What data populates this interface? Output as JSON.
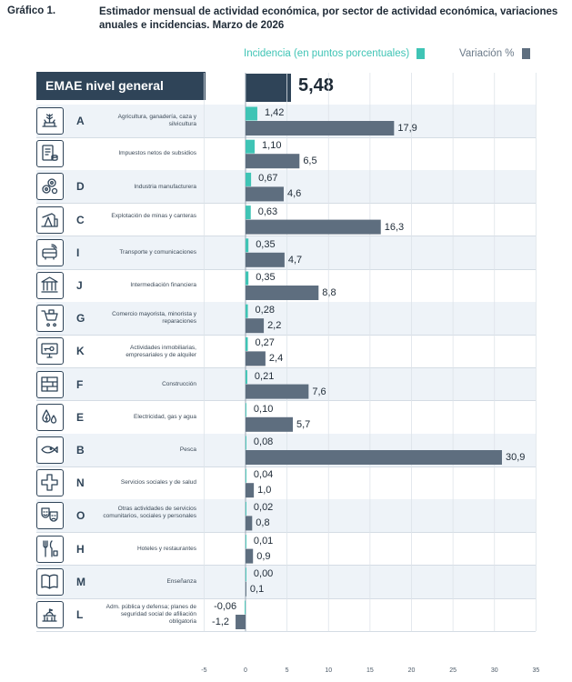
{
  "header": {
    "label": "Gráfico 1.",
    "title": "Estimador mensual de actividad económica, por sector de actividad económica, variaciones anuales e incidencias. Marzo de 2026"
  },
  "chart_data": {
    "type": "bar",
    "orientation": "horizontal",
    "legend": {
      "incidence": "Incidencia (en puntos porcentuales)",
      "variation": "Variación %",
      "position": "top-right"
    },
    "general": {
      "label": "EMAE nivel general",
      "value": 5.48,
      "display": "5,48"
    },
    "xlim": [
      -5,
      35
    ],
    "ticks": [
      -5,
      0,
      5,
      10,
      15,
      20,
      25,
      30,
      35
    ],
    "colors": {
      "incidence": "#3fc4b5",
      "variation": "#5e6e7f",
      "general": "#2f4458"
    },
    "rows": [
      {
        "letter": "A",
        "icon": "agriculture-icon",
        "label": "Agricultura, ganadería, caza y silvicultura",
        "incidence": 1.42,
        "inc_text": "1,42",
        "variation": 17.9,
        "var_text": "17,9"
      },
      {
        "letter": "",
        "icon": "taxes-icon",
        "label": "Impuestos netos de subsidios",
        "incidence": 1.1,
        "inc_text": "1,10",
        "variation": 6.5,
        "var_text": "6,5"
      },
      {
        "letter": "D",
        "icon": "gears-icon",
        "label": "Industria manufacturera",
        "incidence": 0.67,
        "inc_text": "0,67",
        "variation": 4.6,
        "var_text": "4,6"
      },
      {
        "letter": "C",
        "icon": "oil-pump-icon",
        "label": "Explotación de minas y canteras",
        "incidence": 0.63,
        "inc_text": "0,63",
        "variation": 16.3,
        "var_text": "16,3"
      },
      {
        "letter": "I",
        "icon": "transport-icon",
        "label": "Transporte y comunicaciones",
        "incidence": 0.35,
        "inc_text": "0,35",
        "variation": 4.7,
        "var_text": "4,7"
      },
      {
        "letter": "J",
        "icon": "bank-icon",
        "label": "Intermediación financiera",
        "incidence": 0.35,
        "inc_text": "0,35",
        "variation": 8.8,
        "var_text": "8,8"
      },
      {
        "letter": "G",
        "icon": "cart-icon",
        "label": "Comercio mayorista, minorista y reparaciones",
        "incidence": 0.28,
        "inc_text": "0,28",
        "variation": 2.2,
        "var_text": "2,2"
      },
      {
        "letter": "K",
        "icon": "monitor-key-icon",
        "label": "Actividades inmobiliarias, empresariales y de alquiler",
        "incidence": 0.27,
        "inc_text": "0,27",
        "variation": 2.4,
        "var_text": "2,4"
      },
      {
        "letter": "F",
        "icon": "bricks-icon",
        "label": "Construcción",
        "incidence": 0.21,
        "inc_text": "0,21",
        "variation": 7.6,
        "var_text": "7,6"
      },
      {
        "letter": "E",
        "icon": "energy-drops-icon",
        "label": "Electricidad, gas y agua",
        "incidence": 0.1,
        "inc_text": "0,10",
        "variation": 5.7,
        "var_text": "5,7"
      },
      {
        "letter": "B",
        "icon": "fish-icon",
        "label": "Pesca",
        "incidence": 0.08,
        "inc_text": "0,08",
        "variation": 30.9,
        "var_text": "30,9"
      },
      {
        "letter": "N",
        "icon": "health-cross-icon",
        "label": "Servicios sociales y de salud",
        "incidence": 0.04,
        "inc_text": "0,04",
        "variation": 1.0,
        "var_text": "1,0"
      },
      {
        "letter": "O",
        "icon": "masks-icon",
        "label": "Otras actividades de servicios comunitarios, sociales y personales",
        "incidence": 0.02,
        "inc_text": "0,02",
        "variation": 0.8,
        "var_text": "0,8"
      },
      {
        "letter": "H",
        "icon": "cutlery-icon",
        "label": "Hoteles y restaurantes",
        "incidence": 0.01,
        "inc_text": "0,01",
        "variation": 0.9,
        "var_text": "0,9"
      },
      {
        "letter": "M",
        "icon": "book-icon",
        "label": "Enseñanza",
        "incidence": 0.0,
        "inc_text": "0,00",
        "variation": 0.1,
        "var_text": "0,1"
      },
      {
        "letter": "L",
        "icon": "government-icon",
        "label": "Adm. pública y defensa; planes de seguridad social de afiliación obligatoria",
        "incidence": -0.06,
        "inc_text": "-0,06",
        "variation": -1.2,
        "var_text": "-1,2"
      }
    ]
  }
}
